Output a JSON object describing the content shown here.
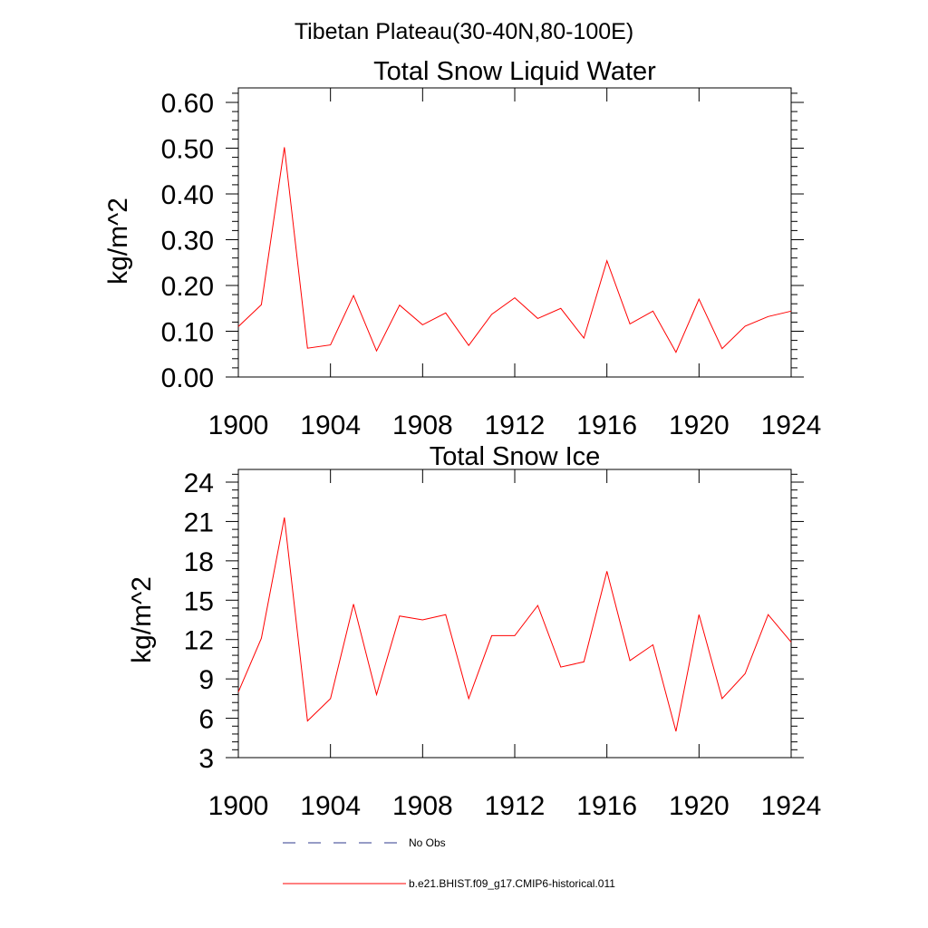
{
  "figure": {
    "suptitle": "Tibetan Plateau(30-40N,80-100E)",
    "line_color": "#ff0000",
    "obs_color": "#2f3a8c"
  },
  "legend": {
    "obs_label": "No Obs",
    "model_label": "b.e21.BHIST.f09_g17.CMIP6-historical.011"
  },
  "chart_data": [
    {
      "type": "line",
      "title": "Total Snow Liquid Water",
      "xlabel": "",
      "ylabel": "kg/m^2",
      "xlim": [
        1900,
        1924
      ],
      "ylim": [
        0.0,
        0.6
      ],
      "xticks": [
        1900,
        1904,
        1908,
        1912,
        1916,
        1920,
        1924
      ],
      "xtick_labels": [
        "1900",
        "1904",
        "1908",
        "1912",
        "1916",
        "1920",
        "1924"
      ],
      "yticks": [
        0.0,
        0.1,
        0.2,
        0.3,
        0.4,
        0.5,
        0.6
      ],
      "ytick_labels": [
        "0.00",
        "0.10",
        "0.20",
        "0.30",
        "0.40",
        "0.50",
        "0.60"
      ],
      "grid": false,
      "x": [
        1900,
        1901,
        1902,
        1903,
        1904,
        1905,
        1906,
        1907,
        1908,
        1909,
        1910,
        1911,
        1912,
        1913,
        1914,
        1915,
        1916,
        1917,
        1918,
        1919,
        1920,
        1921,
        1922,
        1923,
        1924
      ],
      "series": [
        {
          "name": "b.e21.BHIST.f09_g17.CMIP6-historical.011",
          "color": "#ff0000",
          "values": [
            0.11,
            0.158,
            0.502,
            0.063,
            0.07,
            0.178,
            0.057,
            0.157,
            0.114,
            0.14,
            0.069,
            0.137,
            0.173,
            0.128,
            0.15,
            0.085,
            0.254,
            0.116,
            0.144,
            0.054,
            0.17,
            0.062,
            0.111,
            0.132,
            0.144
          ]
        }
      ]
    },
    {
      "type": "line",
      "title": "Total Snow Ice",
      "xlabel": "",
      "ylabel": "kg/m^2",
      "xlim": [
        1900,
        1924
      ],
      "ylim": [
        3,
        24
      ],
      "xticks": [
        1900,
        1904,
        1908,
        1912,
        1916,
        1920,
        1924
      ],
      "xtick_labels": [
        "1900",
        "1904",
        "1908",
        "1912",
        "1916",
        "1920",
        "1924"
      ],
      "yticks": [
        3,
        6,
        9,
        12,
        15,
        18,
        21,
        24
      ],
      "ytick_labels": [
        "3",
        "6",
        "9",
        "12",
        "15",
        "18",
        "21",
        "24"
      ],
      "grid": false,
      "x": [
        1900,
        1901,
        1902,
        1903,
        1904,
        1905,
        1906,
        1907,
        1908,
        1909,
        1910,
        1911,
        1912,
        1913,
        1914,
        1915,
        1916,
        1917,
        1918,
        1919,
        1920,
        1921,
        1922,
        1923,
        1924
      ],
      "series": [
        {
          "name": "b.e21.BHIST.f09_g17.CMIP6-historical.011",
          "color": "#ff0000",
          "values": [
            8.0,
            12.1,
            21.3,
            5.8,
            7.5,
            14.7,
            7.8,
            13.8,
            13.5,
            13.9,
            7.5,
            12.3,
            12.3,
            14.6,
            9.9,
            10.3,
            17.2,
            10.4,
            11.6,
            5.0,
            13.9,
            7.5,
            9.4,
            13.9,
            11.8
          ]
        }
      ]
    }
  ]
}
